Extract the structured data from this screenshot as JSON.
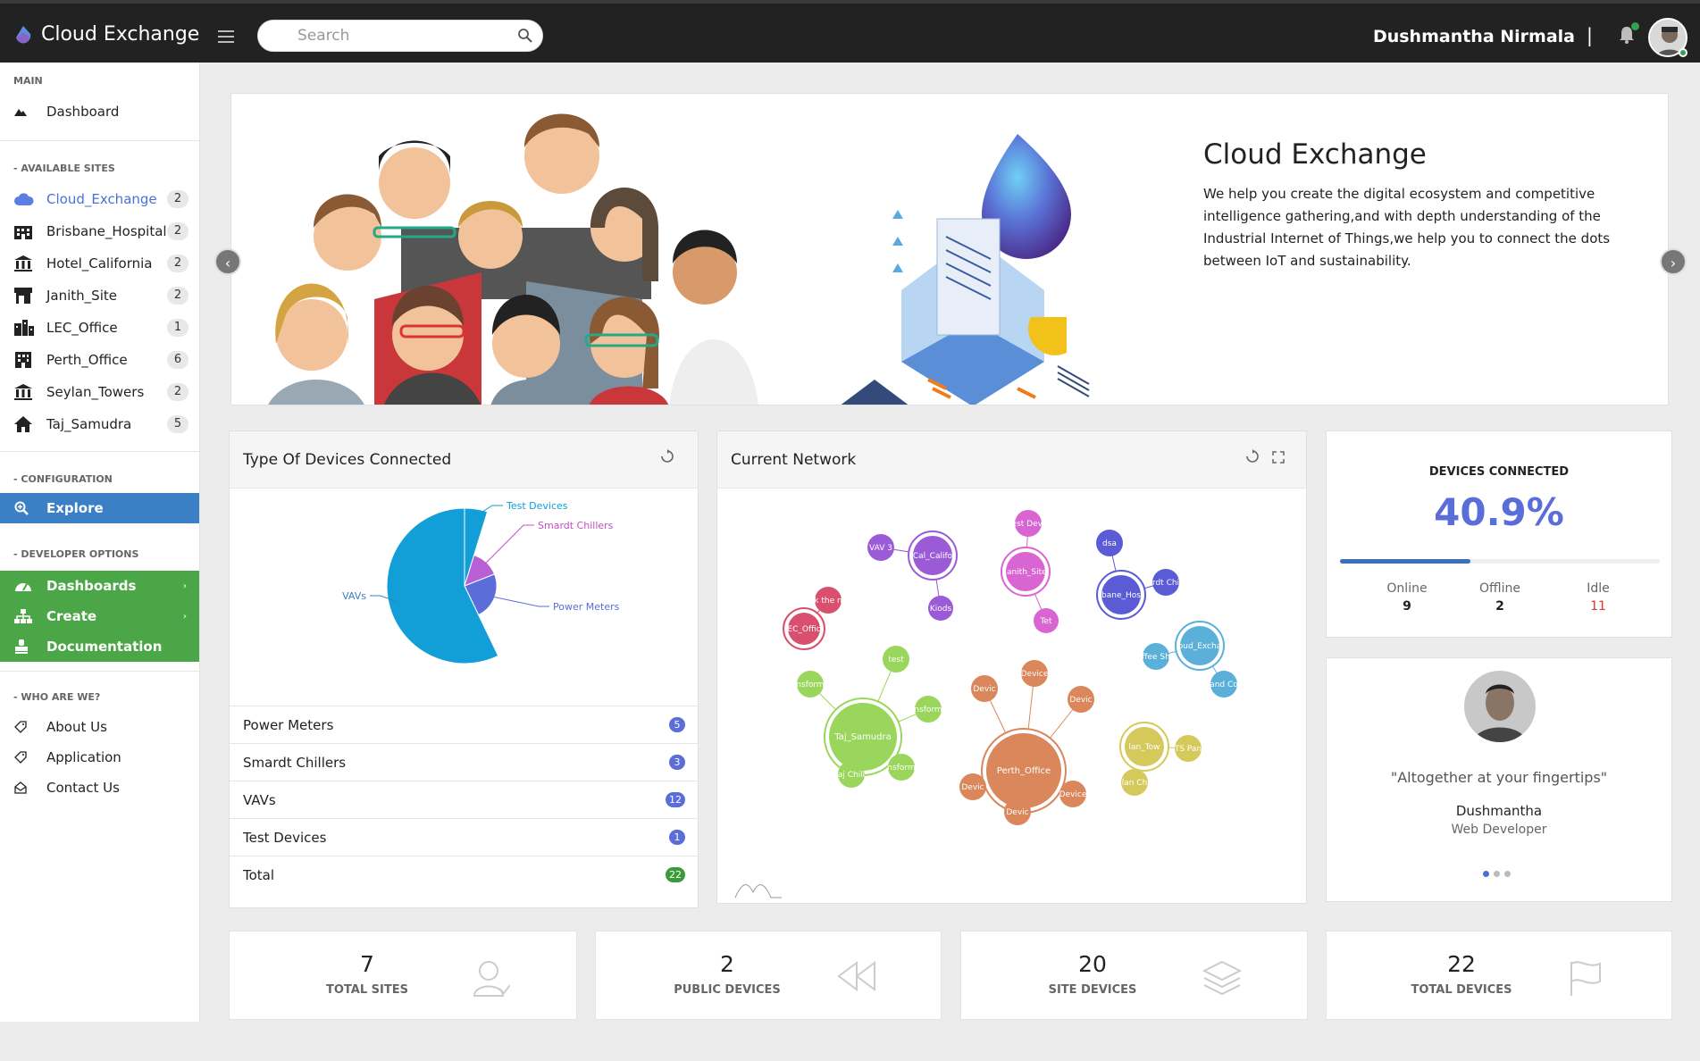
{
  "app": {
    "title": "Cloud Exchange"
  },
  "search": {
    "placeholder": "Search"
  },
  "user": {
    "name": "Dushmantha Nirmala",
    "separator": "|"
  },
  "sidebar": {
    "main_title": "MAIN",
    "dashboard_label": "Dashboard",
    "sites_title": "- AVAILABLE SITES",
    "sites": [
      {
        "label": "Cloud_Exchange",
        "count": "2",
        "icon": "cloud-icon"
      },
      {
        "label": "Brisbane_Hospital",
        "count": "2",
        "icon": "building-icon"
      },
      {
        "label": "Hotel_California",
        "count": "2",
        "icon": "bank-icon"
      },
      {
        "label": "Janith_Site",
        "count": "2",
        "icon": "store-icon"
      },
      {
        "label": "LEC_Office",
        "count": "1",
        "icon": "city-icon"
      },
      {
        "label": "Perth_Office",
        "count": "6",
        "icon": "office-icon"
      },
      {
        "label": "Seylan_Towers",
        "count": "2",
        "icon": "bank-icon"
      },
      {
        "label": "Taj_Samudra",
        "count": "5",
        "icon": "home-icon"
      }
    ],
    "config_title": "- CONFIGURATION",
    "explore_label": "Explore",
    "dev_title": "- DEVELOPER OPTIONS",
    "dashboards_label": "Dashboards",
    "create_label": "Create",
    "documentation_label": "Documentation",
    "who_title": "- WHO ARE WE?",
    "about_label": "About Us",
    "application_label": "Application",
    "contact_label": "Contact Us"
  },
  "banner": {
    "title": "Cloud Exchange",
    "text": "We help you create the digital ecosystem and competitive intelligence gathering,and with depth understanding of the Industrial Internet of Things,we help you to connect the dots between IoT and sustainability.",
    "prev": "‹",
    "next": "›"
  },
  "devices_card": {
    "title": "Type Of Devices Connected",
    "rows": [
      {
        "label": "Power Meters",
        "count": "5",
        "color": "#5b6dd8"
      },
      {
        "label": "Smardt Chillers",
        "count": "3",
        "color": "#5b6dd8"
      },
      {
        "label": "VAVs",
        "count": "12",
        "color": "#5b6dd8"
      },
      {
        "label": "Test Devices",
        "count": "1",
        "color": "#5b6dd8"
      },
      {
        "label": "Total",
        "count": "22",
        "color": "#3a9a3a"
      }
    ]
  },
  "chart_data": {
    "type": "pie",
    "title": "",
    "categories": [
      "Test Devices",
      "Smardt Chillers",
      "Power Meters",
      "VAVs"
    ],
    "values": [
      1,
      3,
      5,
      12
    ],
    "colors": [
      "#1f77b4",
      "#c050c0",
      "#5b6dd8",
      "#129ed6"
    ],
    "label_colors": [
      "#129ed6",
      "#c050c0",
      "#5b6dd8",
      "#3a7fc0"
    ]
  },
  "network_card": {
    "title": "Current Network",
    "nodes": [
      {
        "label": "Cal_Califo",
        "color": "#9b5bd6"
      },
      {
        "label": "VAV 3",
        "color": "#9b5bd6"
      },
      {
        "label": "Kiods",
        "color": "#9b5bd6"
      },
      {
        "label": "Janith_Site",
        "color": "#d965d3"
      },
      {
        "label": "est Devi",
        "color": "#d965d3"
      },
      {
        "label": "Tet",
        "color": "#d965d3"
      },
      {
        "label": "EC_Offic",
        "color": "#d9506e"
      },
      {
        "label": "k the n",
        "color": "#d9506e"
      },
      {
        "label": "bane_Hos",
        "color": "#5b5bd6"
      },
      {
        "label": "dsa",
        "color": "#5b5bd6"
      },
      {
        "label": "rdt Chi",
        "color": "#5b5bd6"
      },
      {
        "label": "oud_Excha",
        "color": "#5bb0d9"
      },
      {
        "label": "ffee Sh",
        "color": "#5bb0d9"
      },
      {
        "label": "and Co",
        "color": "#5bb0d9"
      },
      {
        "label": "Taj_Samudra",
        "color": "#9ad65b"
      },
      {
        "label": "test",
        "color": "#9ad65b"
      },
      {
        "label": "nsform",
        "color": "#9ad65b"
      },
      {
        "label": "nsform",
        "color": "#9ad65b"
      },
      {
        "label": "nsform",
        "color": "#9ad65b"
      },
      {
        "label": "aj Chill",
        "color": "#9ad65b"
      },
      {
        "label": "Perth_Office",
        "color": "#d9875b"
      },
      {
        "label": "Device",
        "color": "#d9875b"
      },
      {
        "label": "Devic",
        "color": "#d9875b"
      },
      {
        "label": "Devic",
        "color": "#d9875b"
      },
      {
        "label": "Devic",
        "color": "#d9875b"
      },
      {
        "label": "Device",
        "color": "#d9875b"
      },
      {
        "label": "Devic",
        "color": "#d9875b"
      },
      {
        "label": "lan_Tow",
        "color": "#d6c95b"
      },
      {
        "label": "TS Pan",
        "color": "#d6c95b"
      },
      {
        "label": "lan Ch",
        "color": "#d6c95b"
      }
    ]
  },
  "devices_connected": {
    "title": "DEVICES CONNECTED",
    "percent": "40.9%",
    "progress": 0.409,
    "online_label": "Online",
    "online_value": "9",
    "offline_label": "Offline",
    "offline_value": "2",
    "idle_label": "Idle",
    "idle_value": "11"
  },
  "testimonial": {
    "quote": "\"Altogether at your fingertips\"",
    "name": "Dushmantha",
    "role": "Web Developer"
  },
  "stats": [
    {
      "value": "7",
      "label": "TOTAL SITES",
      "icon": "user-icon"
    },
    {
      "value": "2",
      "label": "PUBLIC DEVICES",
      "icon": "rewind-icon"
    },
    {
      "value": "20",
      "label": "SITE DEVICES",
      "icon": "layers-icon"
    },
    {
      "value": "22",
      "label": "TOTAL DEVICES",
      "icon": "flag-icon"
    }
  ]
}
